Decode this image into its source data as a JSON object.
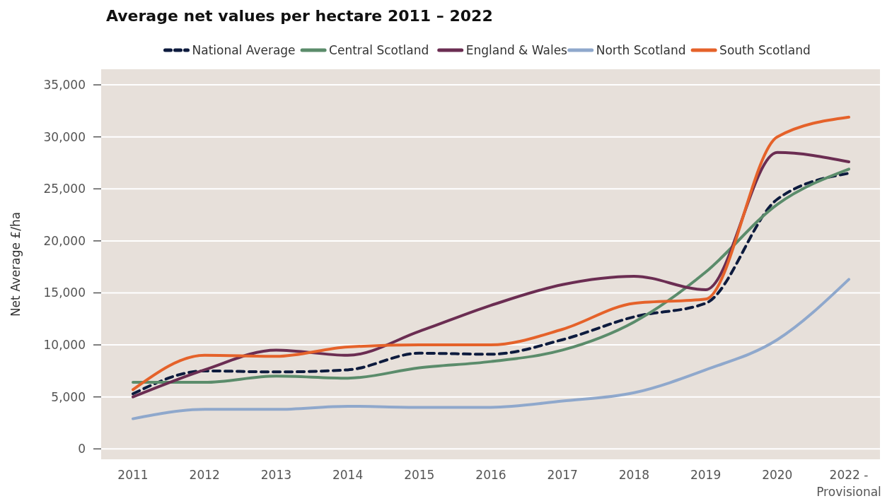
{
  "chart_data": {
    "type": "line",
    "title": "Average net values per hectare 2011 – 2022",
    "ylabel": "Net Average £/ha",
    "categories": [
      "2011",
      "2012",
      "2013",
      "2014",
      "2015",
      "2016",
      "2017",
      "2018",
      "2019",
      "2020",
      "2022 - Provisional"
    ],
    "series": [
      {
        "name": "National Average",
        "color": "#0d1b3e",
        "line_style": "dashed",
        "values": [
          5300,
          7500,
          7400,
          7600,
          9200,
          9100,
          10500,
          12700,
          14000,
          24000,
          26500
        ]
      },
      {
        "name": "Central Scotland",
        "color": "#5b8c6b",
        "values": [
          6400,
          6400,
          7000,
          6800,
          7800,
          8400,
          9500,
          12200,
          17000,
          23500,
          26900
        ]
      },
      {
        "name": "England & Wales",
        "color": "#6b2d52",
        "values": [
          5000,
          7600,
          9500,
          9000,
          11300,
          13800,
          15800,
          16600,
          15300,
          28500,
          27600
        ]
      },
      {
        "name": "North Scotland",
        "color": "#8fa8cc",
        "values": [
          2900,
          3800,
          3800,
          4100,
          4000,
          4000,
          4600,
          5400,
          7600,
          10500,
          16300
        ]
      },
      {
        "name": "South Scotland",
        "color": "#e5622a",
        "values": [
          5700,
          9000,
          8900,
          9800,
          10000,
          10000,
          11500,
          14000,
          14400,
          30000,
          31900
        ]
      }
    ],
    "ylim": [
      -1000,
      36500
    ],
    "yticks": [
      {
        "value": 0,
        "label": "0"
      },
      {
        "value": 5000,
        "label": "5,000"
      },
      {
        "value": 10000,
        "label": "10,000"
      },
      {
        "value": 15000,
        "label": "15,000"
      },
      {
        "value": 20000,
        "label": "20,000"
      },
      {
        "value": 25000,
        "label": "25,000"
      },
      {
        "value": 30000,
        "label": "30,000"
      },
      {
        "value": 35000,
        "label": "35,000"
      }
    ],
    "grid": "y",
    "legend": "top",
    "marker": "none",
    "line_style": "solid"
  }
}
